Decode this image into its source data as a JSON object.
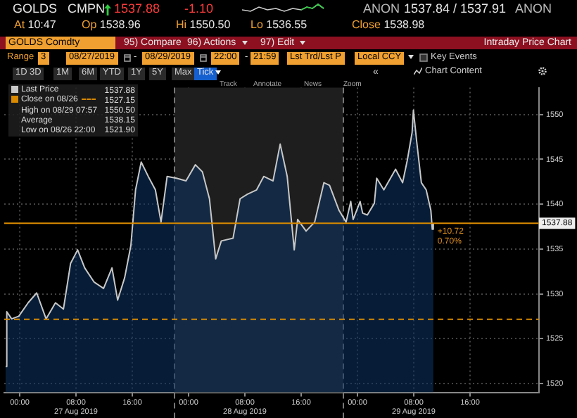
{
  "chart_data": {
    "type": "area",
    "title": "Intraday Price Chart",
    "x": [
      "2019-08-26T22:00",
      "2019-08-26T22:10",
      "2019-08-26T22:51",
      "2019-08-26T23:52",
      "2019-08-27T01:12",
      "2019-08-27T02:25",
      "2019-08-27T03:45",
      "2019-08-27T05:05",
      "2019-08-27T06:13",
      "2019-08-27T07:14",
      "2019-08-27T08:14",
      "2019-08-27T09:14",
      "2019-08-27T10:35",
      "2019-08-27T11:55",
      "2019-08-27T13:07",
      "2019-08-27T13:55",
      "2019-08-27T14:55",
      "2019-08-27T15:48",
      "2019-08-27T16:28",
      "2019-08-27T17:16",
      "2019-08-27T18:16",
      "2019-08-27T19:17",
      "2019-08-27T20:05",
      "2019-08-27T20:57",
      "2019-08-27T22:17",
      "2019-08-27T23:38",
      "2019-08-28T00:58",
      "2019-08-28T01:58",
      "2019-08-28T02:58",
      "2019-08-28T03:51",
      "2019-08-28T04:39",
      "2019-08-28T06:19",
      "2019-08-28T07:19",
      "2019-08-28T08:20",
      "2019-08-28T09:40",
      "2019-08-28T10:41",
      "2019-08-28T12:00",
      "2019-08-28T13:01",
      "2019-08-28T14:01",
      "2019-08-28T15:01",
      "2019-08-28T15:30",
      "2019-08-28T16:42",
      "2019-08-28T17:55",
      "2019-08-28T19:14",
      "2019-08-28T20:02",
      "2019-08-28T21:23",
      "2019-08-28T22:23",
      "2019-08-28T23:03",
      "2019-08-28T23:23",
      "2019-08-29T00:23",
      "2019-08-29T00:44",
      "2019-08-29T01:24",
      "2019-08-29T02:24",
      "2019-08-29T02:44",
      "2019-08-29T03:45",
      "2019-08-29T05:25",
      "2019-08-29T06:25",
      "2019-08-29T07:05",
      "2019-08-29T07:46",
      "2019-08-29T07:57",
      "2019-08-29T08:25",
      "2019-08-29T09:05",
      "2019-08-29T09:46",
      "2019-08-29T10:26",
      "2019-08-29T10:38",
      "2019-08-29T10:47"
    ],
    "series": [
      {
        "name": "Last Price",
        "color": "#c8c8c8",
        "values": [
          1521.9,
          1528.0,
          1527.2,
          1527.5,
          1529.0,
          1530.1,
          1527.2,
          1529.0,
          1528.3,
          1533.4,
          1534.9,
          1532.9,
          1531.3,
          1530.6,
          1532.9,
          1529.3,
          1531.8,
          1535.4,
          1541.6,
          1544.7,
          1543.1,
          1541.6,
          1538.0,
          1543.1,
          1542.9,
          1542.6,
          1544.4,
          1543.6,
          1540.6,
          1533.9,
          1535.9,
          1536.2,
          1540.6,
          1541.1,
          1541.6,
          1543.1,
          1542.6,
          1546.7,
          1543.1,
          1534.9,
          1538.3,
          1537.0,
          1538.0,
          1542.4,
          1542.1,
          1539.3,
          1538.0,
          1540.3,
          1538.3,
          1540.3,
          1539.0,
          1538.8,
          1540.1,
          1542.9,
          1541.6,
          1543.9,
          1542.4,
          1544.9,
          1548.0,
          1550.5,
          1547.0,
          1542.4,
          1541.6,
          1539.3,
          1537.2,
          1537.88
        ]
      }
    ],
    "xlim": [
      "2019-08-26T21:48",
      "2019-08-30T01:48"
    ],
    "xticks": [
      {
        "value": "2019-08-27T00:00",
        "label": "00:00"
      },
      {
        "value": "2019-08-27T08:00",
        "label": "08:00\n27 Aug 2019"
      },
      {
        "value": "2019-08-27T16:00",
        "label": "16:00"
      },
      {
        "value": "2019-08-28T00:00",
        "label": "00:00"
      },
      {
        "value": "2019-08-28T08:00",
        "label": "08:00\n28 Aug 2019"
      },
      {
        "value": "2019-08-28T16:00",
        "label": "16:00"
      },
      {
        "value": "2019-08-29T00:00",
        "label": "00:00"
      },
      {
        "value": "2019-08-29T08:00",
        "label": "08:00\n29 Aug 2019"
      },
      {
        "value": "2019-08-29T16:00",
        "label": "16:00"
      }
    ],
    "ylim": [
      1519,
      1553
    ],
    "yticks": [
      1520,
      1525,
      1530,
      1535,
      1540,
      1545,
      1550
    ],
    "grid": true,
    "legend": "top left",
    "marker": "none",
    "line_style": "solid",
    "bands": [
      {
        "axis": "x",
        "from": "2019-08-27T22:00",
        "to": "2019-08-28T22:00",
        "color": "#1e1e1e"
      }
    ],
    "ref_lines": [
      {
        "axis": "y",
        "value": 1537.88,
        "label": "1537.88",
        "color": "#d98a00",
        "line_style": "solid"
      },
      {
        "axis": "y",
        "value": 1527.15,
        "label": "Close on 08/26",
        "color": "#d98a00",
        "line_style": "dashed"
      },
      {
        "axis": "x",
        "value": "2019-08-27T22:00",
        "color": "#777777",
        "line_style": "dashed"
      },
      {
        "axis": "x",
        "value": "2019-08-28T22:00",
        "color": "#777777",
        "line_style": "dashed"
      }
    ],
    "annotations": [
      "GOLDS",
      "CMPN",
      "1537.88",
      "-1.10",
      "ANON",
      "1537.84 / 1537.91",
      "ANON",
      "At 10:47",
      "Op 1538.96",
      "Hi 1550.50",
      "Lo 1536.55",
      "Close 1538.98",
      "GOLDS Comdty",
      "95) Compare",
      "96) Actions",
      "97) Edit",
      "Range",
      "3",
      "08/27/2019",
      "-",
      "08/29/2019",
      "22:00",
      "-",
      "21:59",
      "Lst Trd/Lst P",
      "Local CCY",
      "Key Events",
      "1D",
      "3D",
      "1M",
      "6M",
      "YTD",
      "1Y",
      "5Y",
      "Max",
      "Tick",
      "«",
      "Chart Content",
      "Track",
      "Annotate",
      "News",
      "Zoom",
      "1527.15",
      "High on 08/29 07:57",
      "1550.50",
      "Average",
      "1538.15",
      "Low on 08/26 22:00",
      "1521.90",
      {
        "text": "+10.72",
        "x": "2019-08-29T10:47",
        "y": 1537.88
      },
      {
        "text": "0.70%",
        "x": "2019-08-29T10:47",
        "y": 1537.88
      }
    ]
  }
}
